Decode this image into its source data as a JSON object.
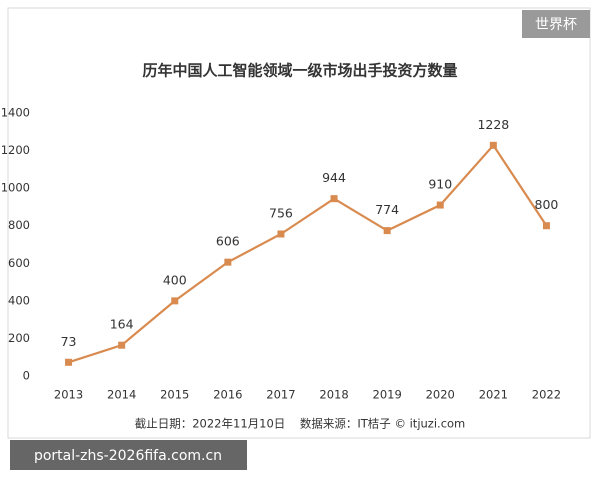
{
  "chart_data": {
    "type": "line",
    "title": "历年中国人工智能领域一级市场出手投资方数量",
    "categories": [
      "2013",
      "2014",
      "2015",
      "2016",
      "2017",
      "2018",
      "2019",
      "2020",
      "2021",
      "2022"
    ],
    "values": [
      73,
      164,
      400,
      606,
      756,
      944,
      774,
      910,
      1228,
      800
    ],
    "color": "#d98a4e",
    "ylim": [
      0,
      1400
    ],
    "yticks": [
      0,
      200,
      400,
      600,
      800,
      1000,
      1200,
      1400
    ],
    "grid": false,
    "source_note": "截止日期：2022年11月10日    数据来源：IT桔子 © itjuzi.com"
  },
  "overlays": {
    "badge": "世界杯",
    "url": "portal-zhs-2026fifa.com.cn"
  }
}
